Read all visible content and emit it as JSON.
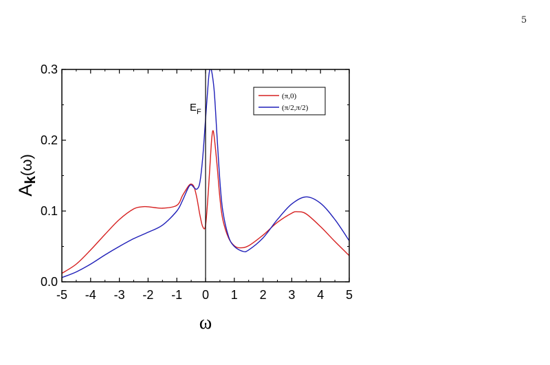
{
  "page": {
    "number": "5"
  },
  "chart_data": {
    "type": "line",
    "title": "",
    "xlabel": "ω",
    "ylabel_main": "A",
    "ylabel_sub": "k",
    "ylabel_tail": "(ω)",
    "xlim": [
      -5,
      5
    ],
    "ylim": [
      0,
      0.3
    ],
    "xticks": [
      -5,
      -4,
      -3,
      -2,
      -1,
      0,
      1,
      2,
      3,
      4,
      5
    ],
    "xtick_labels": [
      "-5",
      "-4",
      "-3",
      "-2",
      "-1",
      "0",
      "1",
      "2",
      "3",
      "4",
      "5"
    ],
    "yticks": [
      0,
      0.1,
      0.2,
      0.3
    ],
    "ytick_labels": [
      "0.0",
      "0.1",
      "0.2",
      "0.3"
    ],
    "grid": false,
    "legend_position": "top-right",
    "annotation": {
      "main": "E",
      "sub": "F",
      "x": 0
    },
    "series": [
      {
        "name": "(π,0)",
        "color": "#d62020",
        "x": [
          -5,
          -4.5,
          -4,
          -3.5,
          -3,
          -2.5,
          -2.2,
          -2,
          -1.5,
          -1,
          -0.8,
          -0.6,
          -0.5,
          -0.4,
          -0.3,
          -0.2,
          -0.1,
          0,
          0.1,
          0.2,
          0.25,
          0.3,
          0.4,
          0.5,
          0.6,
          0.8,
          1,
          1.2,
          1.5,
          2,
          2.5,
          3,
          3.2,
          3.5,
          4,
          4.5,
          5
        ],
        "y": [
          0.012,
          0.025,
          0.045,
          0.067,
          0.088,
          0.103,
          0.106,
          0.106,
          0.104,
          0.108,
          0.122,
          0.135,
          0.138,
          0.134,
          0.118,
          0.095,
          0.078,
          0.08,
          0.13,
          0.195,
          0.213,
          0.205,
          0.165,
          0.118,
          0.088,
          0.062,
          0.051,
          0.048,
          0.051,
          0.066,
          0.084,
          0.097,
          0.099,
          0.096,
          0.078,
          0.057,
          0.037
        ]
      },
      {
        "name": "(π/2,π/2)",
        "color": "#1f1fb8",
        "x": [
          -5,
          -4.5,
          -4,
          -3.5,
          -3,
          -2.5,
          -2,
          -1.5,
          -1,
          -0.8,
          -0.6,
          -0.5,
          -0.4,
          -0.3,
          -0.2,
          -0.1,
          0,
          0.1,
          0.15,
          0.2,
          0.3,
          0.4,
          0.5,
          0.6,
          0.8,
          1,
          1.3,
          1.5,
          2,
          2.5,
          3,
          3.5,
          4,
          4.5,
          5
        ],
        "y": [
          0.006,
          0.014,
          0.025,
          0.038,
          0.05,
          0.061,
          0.07,
          0.08,
          0.1,
          0.115,
          0.133,
          0.137,
          0.133,
          0.131,
          0.14,
          0.175,
          0.23,
          0.285,
          0.3,
          0.3,
          0.27,
          0.205,
          0.142,
          0.1,
          0.064,
          0.05,
          0.043,
          0.045,
          0.062,
          0.088,
          0.11,
          0.12,
          0.111,
          0.088,
          0.058
        ]
      }
    ]
  }
}
